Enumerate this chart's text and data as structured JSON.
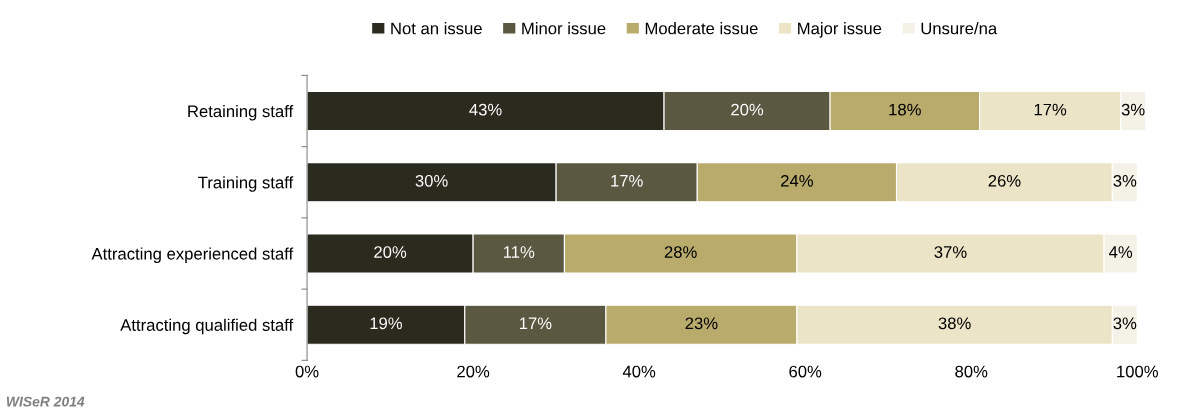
{
  "chart_data": {
    "type": "bar",
    "orientation": "horizontal",
    "stacked": true,
    "legend": "top",
    "grid": false,
    "categories": [
      "Retaining staff",
      "Training staff",
      "Attracting experienced staff",
      "Attracting qualified staff"
    ],
    "series": [
      {
        "name": "Not an issue",
        "color": "#2b2a1f",
        "values": [
          43,
          30,
          20,
          19
        ],
        "value_labels": [
          "43%",
          "30%",
          "20%",
          "19%"
        ]
      },
      {
        "name": "Minor issue",
        "color": "#5a5841",
        "values": [
          20,
          17,
          11,
          17
        ],
        "value_labels": [
          "20%",
          "17%",
          "11%",
          "17%"
        ]
      },
      {
        "name": "Moderate issue",
        "color": "#b8ab6c",
        "values": [
          18,
          24,
          28,
          23
        ],
        "value_labels": [
          "18%",
          "24%",
          "28%",
          "23%"
        ]
      },
      {
        "name": "Major issue",
        "color": "#ebe4c6",
        "values": [
          17,
          26,
          37,
          38
        ],
        "value_labels": [
          "17%",
          "26%",
          "37%",
          "38%"
        ]
      },
      {
        "name": "Unsure/na",
        "color": "#f4f1e6",
        "values": [
          3,
          3,
          4,
          3
        ],
        "value_labels": [
          "3%",
          "3%",
          "4%",
          "3%"
        ]
      }
    ],
    "xlim": [
      0,
      101
    ],
    "xticks": [
      {
        "value": 0,
        "label": "0%"
      },
      {
        "value": 20,
        "label": "20%"
      },
      {
        "value": 40,
        "label": "40%"
      },
      {
        "value": 60,
        "label": "60%"
      },
      {
        "value": 80,
        "label": "80%"
      },
      {
        "value": 100,
        "label": "100%"
      }
    ],
    "annotations": [
      "WISeR 2014"
    ]
  }
}
